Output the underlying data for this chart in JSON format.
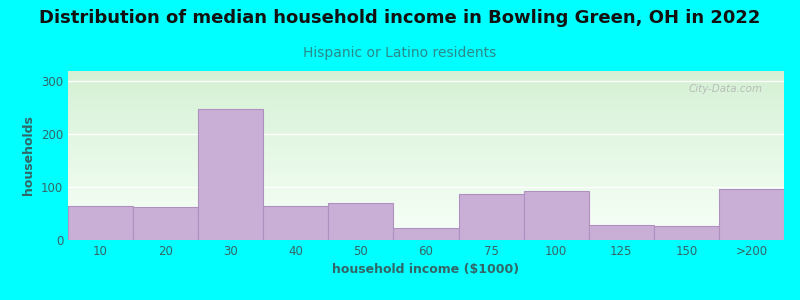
{
  "title": "Distribution of median household income in Bowling Green, OH in 2022",
  "subtitle": "Hispanic or Latino residents",
  "xlabel": "household income ($1000)",
  "ylabel": "households",
  "background_color": "#00FFFF",
  "plot_bg_top": "#d4f0d4",
  "plot_bg_bottom": "#f8fff8",
  "bar_color": "#c9aed6",
  "bar_edge_color": "#b090c0",
  "categories": [
    "10",
    "20",
    "30",
    "40",
    "50",
    "60",
    "75",
    "100",
    "125",
    "150",
    ">200"
  ],
  "values": [
    65,
    62,
    248,
    65,
    70,
    22,
    87,
    92,
    28,
    27,
    96
  ],
  "ylim": [
    0,
    320
  ],
  "yticks": [
    0,
    100,
    200,
    300
  ],
  "title_fontsize": 13,
  "subtitle_fontsize": 10,
  "label_fontsize": 9,
  "tick_fontsize": 8.5,
  "subtitle_color": "#2a8a8a",
  "title_color": "#111111",
  "tick_color": "#336666",
  "watermark_text": "City-Data.com"
}
